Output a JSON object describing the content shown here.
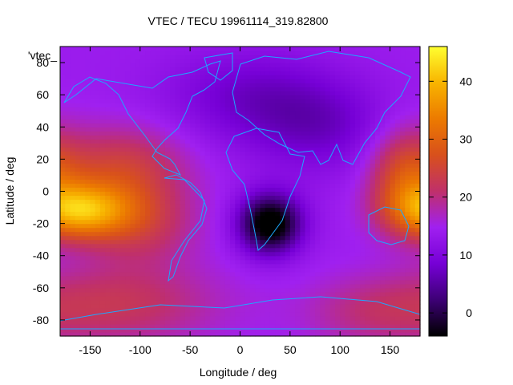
{
  "chart_data": {
    "type": "heatmap",
    "title": "VTEC / TECU 19961114_319.82800",
    "xlabel": "Longitude / deg",
    "ylabel": "Latitude / deg",
    "key_label": "'vtec_",
    "xlim": [
      -180,
      180
    ],
    "ylim": [
      -90,
      90
    ],
    "x_ticks": [
      -150,
      -100,
      -50,
      0,
      50,
      100,
      150
    ],
    "y_ticks": [
      -80,
      -60,
      -40,
      -20,
      0,
      20,
      40,
      60,
      80
    ],
    "colorbar": {
      "range": [
        -4,
        46
      ],
      "ticks": [
        0,
        10,
        20,
        30,
        40
      ],
      "palette": [
        "#000000",
        "#3d0075",
        "#7600d6",
        "#a020f0",
        "#c0306a",
        "#d8501c",
        "#ec7a00",
        "#f8b400",
        "#ffff30"
      ]
    },
    "features": {
      "peak": {
        "lon": -160,
        "lat": -12,
        "value": 44
      },
      "peak_east": {
        "lon": 165,
        "lat": 10,
        "value": 28
      },
      "minimum": {
        "lon": 30,
        "lat": -20,
        "value": -3
      }
    }
  }
}
